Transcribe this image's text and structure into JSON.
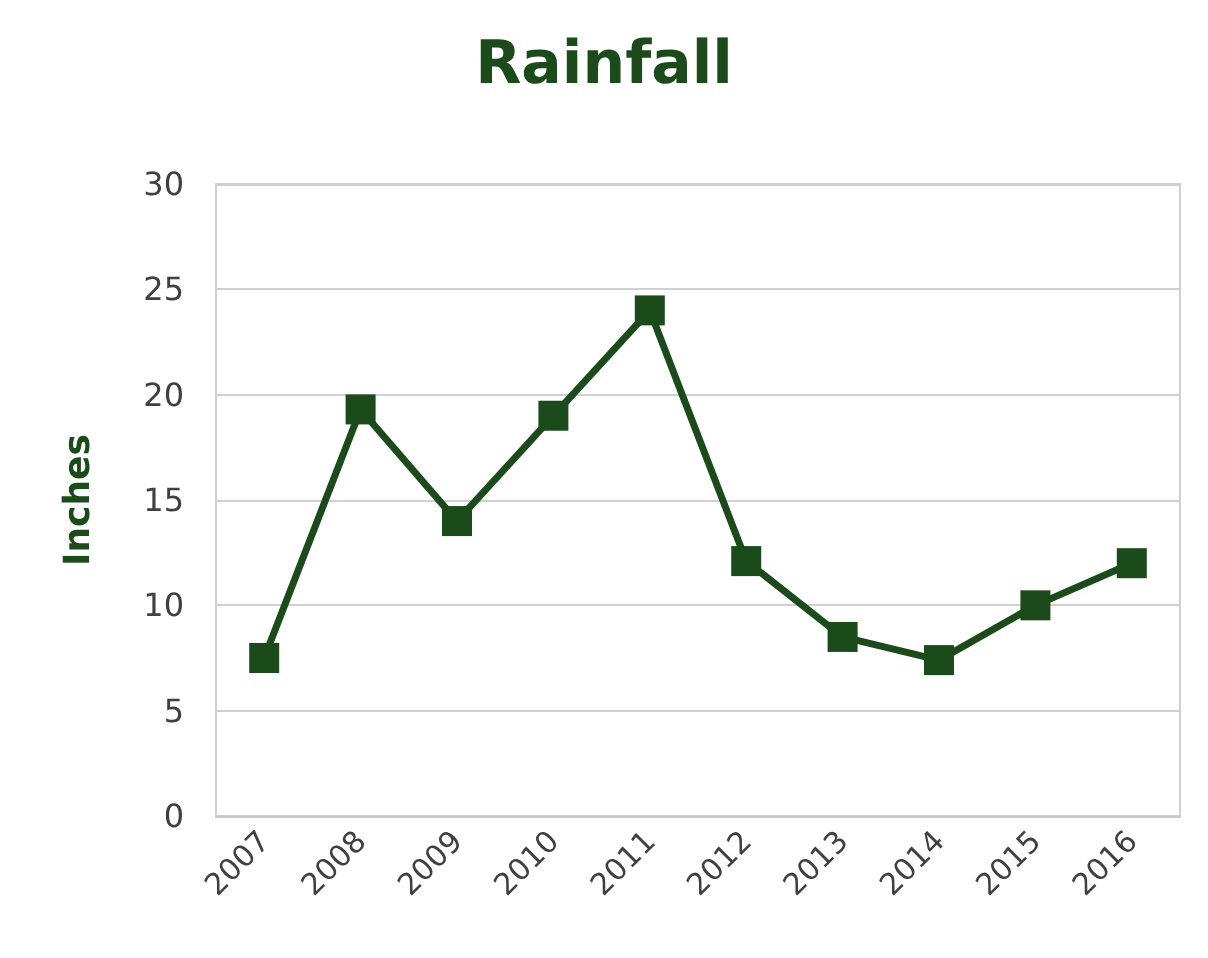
{
  "chart_data": {
    "type": "line",
    "title": "Rainfall",
    "ylabel": "Inches",
    "categories": [
      "2007",
      "2008",
      "2009",
      "2010",
      "2011",
      "2012",
      "2013",
      "2014",
      "2015",
      "2016"
    ],
    "series": [
      {
        "color": "#1b4a1b",
        "values": [
          7.5,
          19.3,
          14,
          19,
          24,
          12.1,
          8.5,
          7.4,
          10,
          12
        ]
      }
    ],
    "ylim": [
      0,
      30
    ],
    "yticks": [
      0,
      5,
      10,
      15,
      20,
      25,
      30
    ],
    "grid": "y",
    "marker": "square",
    "line_style": "solid"
  }
}
